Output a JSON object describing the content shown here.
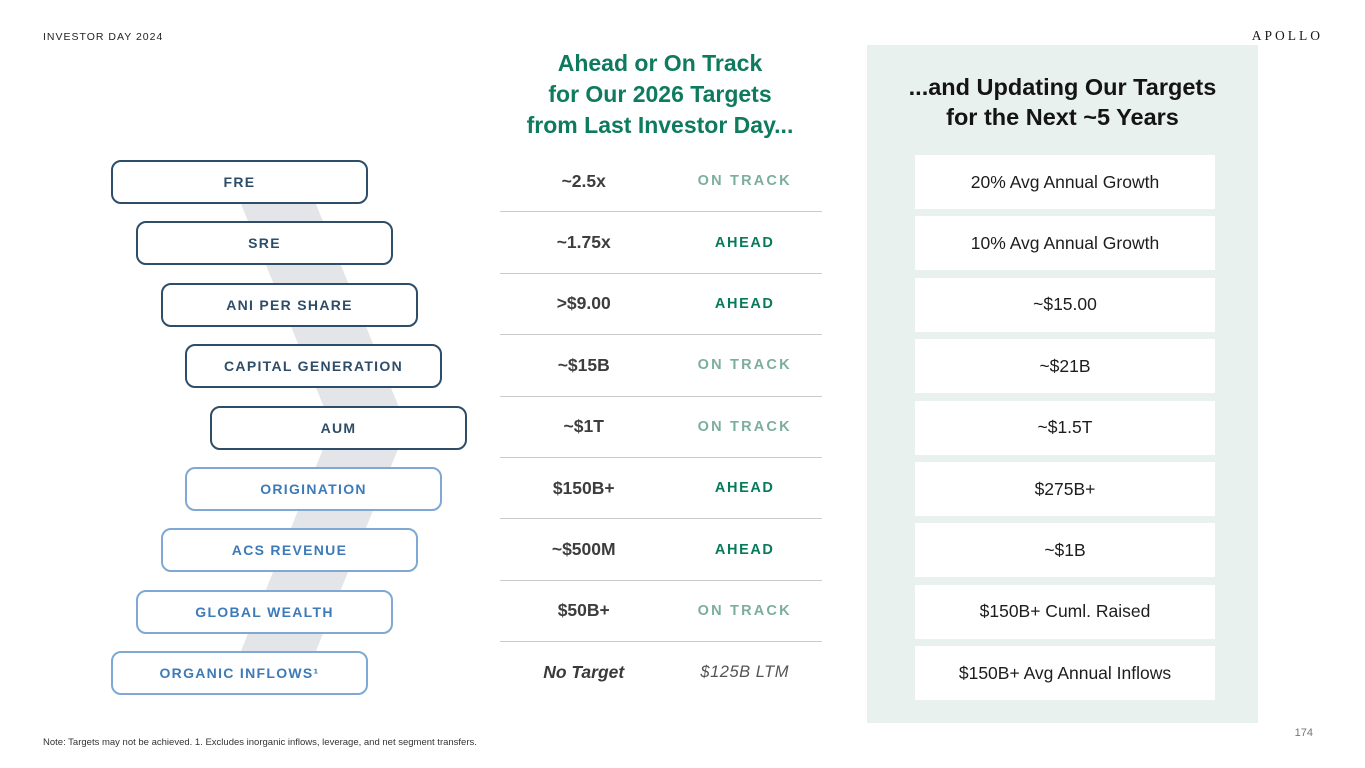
{
  "header": {
    "event_title": "INVESTOR DAY 2024",
    "logo": "APOLLO"
  },
  "funnel": {
    "items": [
      {
        "label": "FRE",
        "style": "dark"
      },
      {
        "label": "SRE",
        "style": "dark"
      },
      {
        "label": "ANI PER SHARE",
        "style": "dark"
      },
      {
        "label": "CAPITAL GENERATION",
        "style": "dark"
      },
      {
        "label": "AUM",
        "style": "dark"
      },
      {
        "label": "ORIGINATION",
        "style": "light"
      },
      {
        "label": "ACS REVENUE",
        "style": "light"
      },
      {
        "label": "GLOBAL WEALTH",
        "style": "light"
      },
      {
        "label": "ORGANIC INFLOWS¹",
        "style": "light"
      }
    ]
  },
  "middle": {
    "heading_lines": [
      "Ahead or On Track",
      "for Our 2026 Targets",
      "from Last Investor Day..."
    ],
    "rows": [
      {
        "value": "~2.5x",
        "status": "ON TRACK",
        "status_type": "on-track"
      },
      {
        "value": "~1.75x",
        "status": "AHEAD",
        "status_type": "ahead"
      },
      {
        "value": ">$9.00",
        "status": "AHEAD",
        "status_type": "ahead"
      },
      {
        "value": "~$15B",
        "status": "ON TRACK",
        "status_type": "on-track"
      },
      {
        "value": "~$1T",
        "status": "ON TRACK",
        "status_type": "on-track"
      },
      {
        "value": "$150B+",
        "status": "AHEAD",
        "status_type": "ahead"
      },
      {
        "value": "~$500M",
        "status": "AHEAD",
        "status_type": "ahead"
      },
      {
        "value": "$50B+",
        "status": "ON TRACK",
        "status_type": "on-track"
      },
      {
        "value": "No Target",
        "status": "$125B LTM",
        "status_type": "ltm",
        "value_style": "italic"
      }
    ]
  },
  "right": {
    "heading_lines": [
      "...and Updating Our Targets",
      "for the Next ~5 Years"
    ],
    "cards": [
      "20% Avg Annual Growth",
      "10% Avg Annual Growth",
      "~$15.00",
      "~$21B",
      "~$1.5T",
      "$275B+",
      "~$1B",
      "$150B+ Cuml. Raised",
      "$150B+ Avg Annual Inflows"
    ]
  },
  "footer": {
    "note": "Note: Targets may not be achieved. 1. Excludes inorganic inflows, leverage, and net segment transfers.",
    "page_number": "174"
  },
  "colors": {
    "accent_teal": "#0e7b5f",
    "dark_navy": "#2e4d68",
    "light_blue_border": "#7fa8d4",
    "light_blue_text": "#3d7ab8",
    "ahead_green": "#087a5c",
    "on_track_green": "#7cae9d",
    "panel_background": "#e9f1ee",
    "ribbon_gray": "#e4e5e9"
  }
}
